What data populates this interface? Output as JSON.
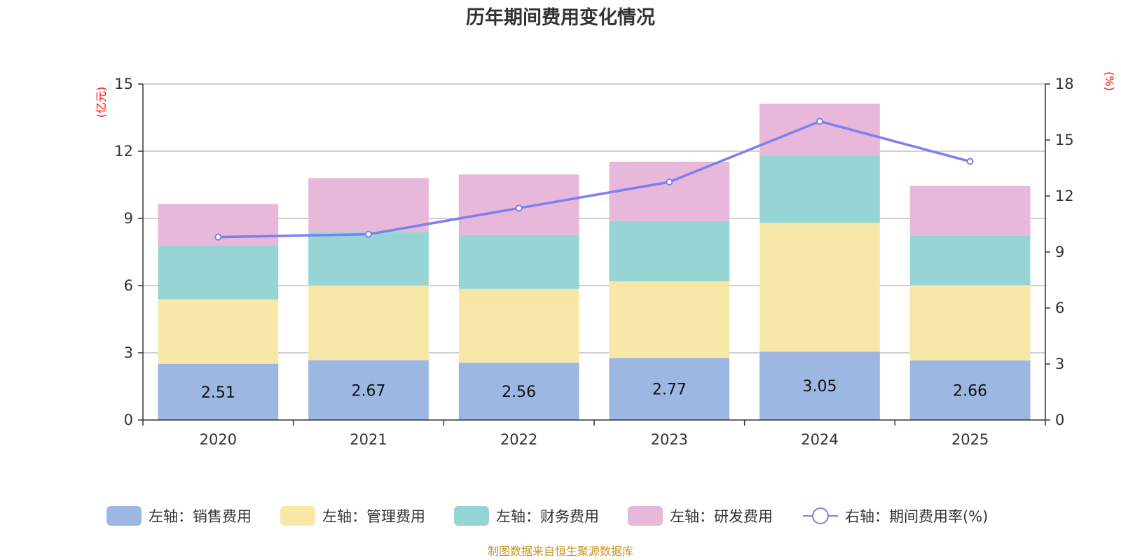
{
  "chart_data": {
    "type": "bar",
    "stacked": true,
    "title": "历年期间费用变化情况",
    "categories": [
      "2020",
      "2021",
      "2022",
      "2023",
      "2024",
      "2025"
    ],
    "left_axis": {
      "unit": "(亿元)",
      "ylim": [
        0,
        15
      ],
      "ticks": [
        "0",
        "3",
        "6",
        "9",
        "12",
        "15"
      ]
    },
    "right_axis": {
      "unit": "(%)",
      "ylim": [
        0,
        18
      ],
      "ticks": [
        "0",
        "3",
        "6",
        "9",
        "12",
        "15",
        "18"
      ]
    },
    "series": [
      {
        "name": "左轴：销售费用",
        "type": "bar",
        "axis": "left",
        "color": "#9cb8e2",
        "values": [
          2.51,
          2.67,
          2.56,
          2.77,
          3.05,
          2.66
        ],
        "labels": [
          "2.51",
          "2.67",
          "2.56",
          "2.77",
          "3.05",
          "2.66"
        ]
      },
      {
        "name": "左轴：管理费用",
        "type": "bar",
        "axis": "left",
        "color": "#f8e8a8",
        "values": [
          2.88,
          3.34,
          3.29,
          3.42,
          5.75,
          3.36
        ]
      },
      {
        "name": "左轴：财务费用",
        "type": "bar",
        "axis": "left",
        "color": "#97d5d5",
        "values": [
          2.41,
          2.39,
          2.41,
          2.69,
          3.0,
          2.2
        ]
      },
      {
        "name": "左轴：研发费用",
        "type": "bar",
        "axis": "left",
        "color": "#e8b8da",
        "values": [
          1.85,
          2.4,
          2.7,
          2.65,
          2.32,
          2.23
        ]
      },
      {
        "name": "右轴：期间费用率(%)",
        "type": "line",
        "axis": "right",
        "color": "#7b7ff0",
        "values": [
          9.8,
          9.95,
          11.35,
          12.75,
          16.0,
          13.85
        ]
      }
    ],
    "legend_position": "bottom",
    "grid": true
  },
  "source": "制图数据来自恒生聚源数据库"
}
